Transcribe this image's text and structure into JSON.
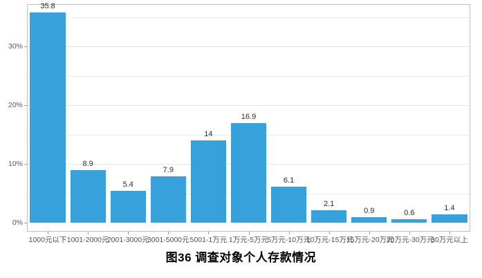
{
  "chart_data": {
    "type": "bar",
    "title": "图36  调查对象个人存款情况",
    "categories": [
      "1000元以下",
      "1001-2000元",
      "2001-3000元",
      "3001-5000元",
      "5001-1万元",
      "1万元-5万元",
      "5万元-10万元",
      "10万元-15万元",
      "15万元-20万元",
      "20万元-30万元",
      "30万元以上"
    ],
    "values": [
      35.8,
      8.9,
      5.4,
      7.9,
      14,
      16.9,
      6.1,
      2.1,
      0.9,
      0.6,
      1.4
    ],
    "value_labels": [
      "35.8",
      "8.9",
      "5.4",
      "7.9",
      "14",
      "16.9",
      "6.1",
      "2.1",
      "0.9",
      "0.6",
      "1.4"
    ],
    "xlabel": "",
    "ylabel": "",
    "y_ticks": [
      "0%",
      "10%",
      "20%",
      "30%"
    ],
    "y_tick_values": [
      0,
      10,
      20,
      30
    ],
    "ylim": [
      -1.5,
      37.2
    ],
    "grid": {
      "on": true,
      "interval": 5,
      "max": 35,
      "color": "#ececec"
    },
    "legend": "none",
    "bar_color": "#36a1db",
    "axis_text_color": "#595959"
  }
}
